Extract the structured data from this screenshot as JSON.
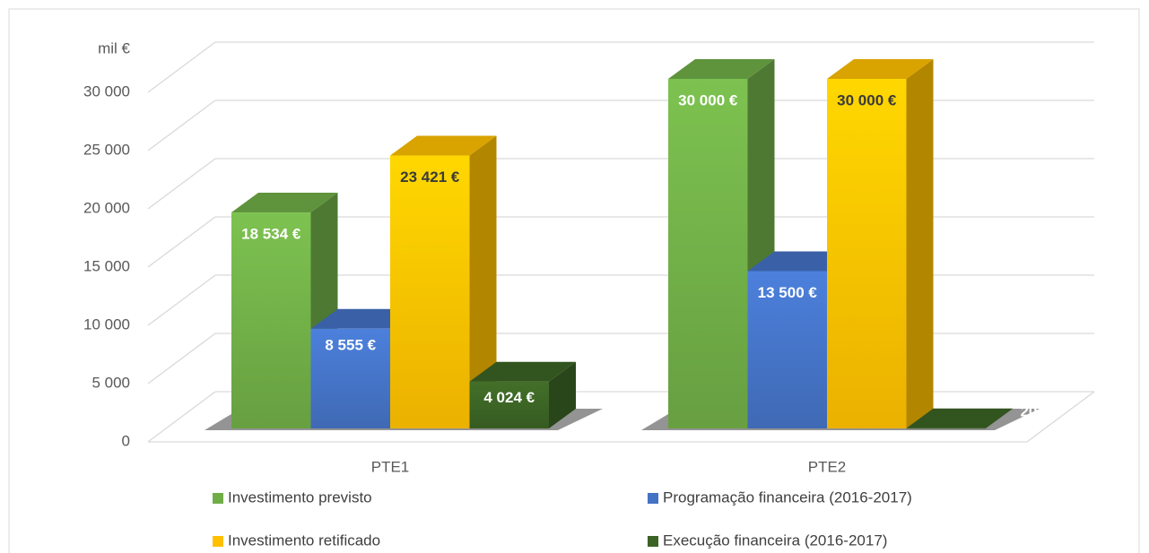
{
  "chart_data": {
    "type": "bar3d",
    "y_label": "mil €",
    "categories": [
      "PTE1",
      "PTE2"
    ],
    "series": [
      {
        "name": "Investimento previsto",
        "color": "#70ad47",
        "values": [
          18534,
          30000
        ],
        "value_labels": [
          "18 534 €",
          "30 000 €"
        ]
      },
      {
        "name": "Programação financeira (2016-2017)",
        "color": "#4472c4",
        "values": [
          8555,
          13500
        ],
        "value_labels": [
          "8 555 €",
          "13 500 €"
        ]
      },
      {
        "name": "Investimento retificado",
        "color": "#ffc000",
        "values": [
          23421,
          30000
        ],
        "value_labels": [
          "23 421 €",
          "30 000 €"
        ]
      },
      {
        "name": "Execução financeira (2016-2017)",
        "color": "#3b6325",
        "values": [
          4024,
          20
        ],
        "value_labels": [
          "4 024 €",
          "20 €"
        ]
      }
    ],
    "ylim": [
      0,
      30000
    ],
    "yticks": [
      0,
      {
        "value": 5000,
        "label": "5 000"
      },
      {
        "value": 10000,
        "label": "10 000"
      },
      {
        "value": 15000,
        "label": "15 000"
      },
      {
        "value": 20000,
        "label": "20 000"
      },
      {
        "value": 25000,
        "label": "25 000"
      },
      {
        "value": 30000,
        "label": "30 000"
      }
    ],
    "grid": true
  }
}
